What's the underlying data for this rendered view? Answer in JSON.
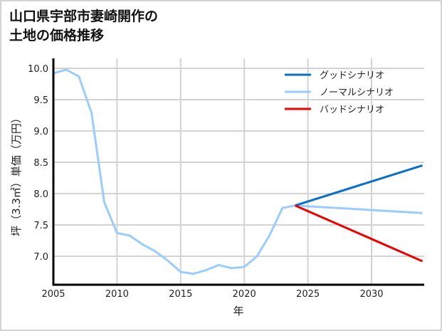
{
  "header": {
    "title": "山口県宇部市妻崎開作の\n土地の価格推移"
  },
  "chart_data": {
    "type": "line",
    "title": "山口県宇部市妻崎開作の土地の価格推移",
    "xlabel": "年",
    "ylabel": "坪（3.3㎡）単価（万円）",
    "xlim": [
      2005,
      2034
    ],
    "ylim": [
      6.6,
      10.15
    ],
    "xticks": [
      2005,
      2010,
      2015,
      2020,
      2025,
      2030
    ],
    "yticks": [
      7.0,
      7.5,
      8.0,
      8.5,
      9.0,
      9.5,
      10.0
    ],
    "ytick_labels": [
      "7.0",
      "7.5",
      "8.0",
      "8.5",
      "9.0",
      "9.5",
      "10.0"
    ],
    "grid": true,
    "legend_position": "upper right",
    "series": [
      {
        "name": "グッドシナリオ",
        "color": "#0a6fc8",
        "x": [
          2024,
          2034
        ],
        "values": [
          7.81,
          8.45
        ]
      },
      {
        "name": "ノーマルシナリオ",
        "color": "#99ccff",
        "x": [
          2005,
          2006,
          2007,
          2008,
          2009,
          2010,
          2011,
          2012,
          2013,
          2014,
          2015,
          2016,
          2017,
          2018,
          2019,
          2020,
          2021,
          2022,
          2023,
          2024,
          2034
        ],
        "values": [
          9.92,
          9.98,
          9.87,
          9.29,
          7.86,
          7.37,
          7.33,
          7.19,
          7.08,
          6.93,
          6.75,
          6.72,
          6.78,
          6.86,
          6.81,
          6.83,
          7.0,
          7.34,
          7.77,
          7.81,
          7.69
        ]
      },
      {
        "name": "バッドシナリオ",
        "color": "#ee0000",
        "x": [
          2024,
          2034
        ],
        "values": [
          7.81,
          6.92
        ]
      }
    ]
  },
  "legend": {
    "items": [
      {
        "label": "グッドシナリオ",
        "color": "#0a6fc8"
      },
      {
        "label": "ノーマルシナリオ",
        "color": "#99ccff"
      },
      {
        "label": "バッドシナリオ",
        "color": "#ee0000"
      }
    ]
  },
  "axes": {
    "xlabel": "年",
    "ylabel": "坪（3.3㎡）単価（万円）"
  }
}
